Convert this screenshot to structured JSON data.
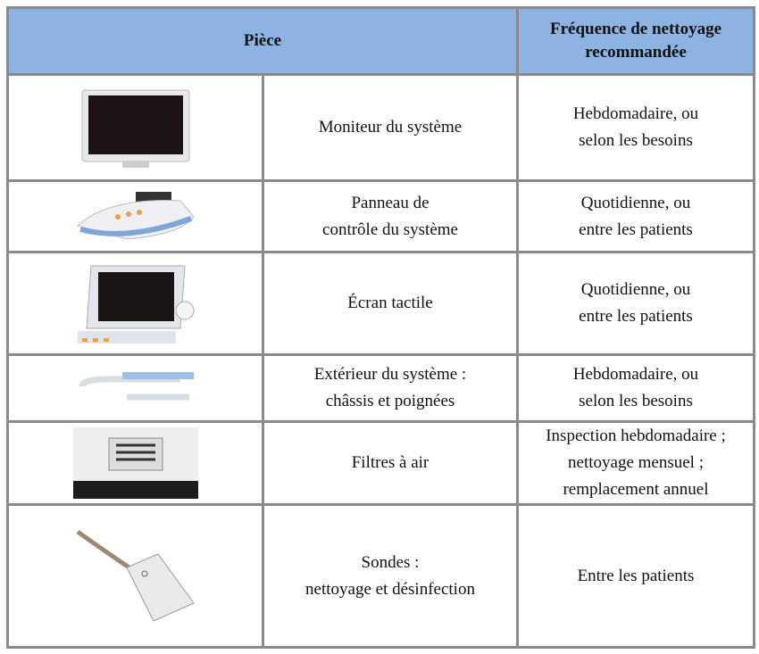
{
  "table": {
    "header": {
      "part": "Pièce",
      "frequency": [
        "Fréquence de nettoyage",
        "recommandée"
      ]
    },
    "rows": [
      {
        "part": [
          "Moniteur du système"
        ],
        "frequency": [
          "Hebdomadaire, ou",
          "selon les besoins"
        ]
      },
      {
        "part": [
          "Panneau de",
          "contrôle du système"
        ],
        "frequency": [
          "Quotidienne, ou",
          "entre les patients"
        ]
      },
      {
        "part": [
          "Écran tactile"
        ],
        "frequency": [
          "Quotidienne, ou",
          "entre les patients"
        ]
      },
      {
        "part": [
          "Extérieur du système :",
          "châssis et poignées"
        ],
        "frequency": [
          "Hebdomadaire, ou",
          "selon les besoins"
        ]
      },
      {
        "part": [
          "Filtres à air"
        ],
        "frequency": [
          "Inspection hebdomadaire ;",
          "nettoyage mensuel ;",
          "remplacement annuel"
        ]
      },
      {
        "part": [
          "Sondes :",
          "nettoyage et désinfection"
        ],
        "frequency": [
          "Entre les patients"
        ]
      }
    ]
  }
}
